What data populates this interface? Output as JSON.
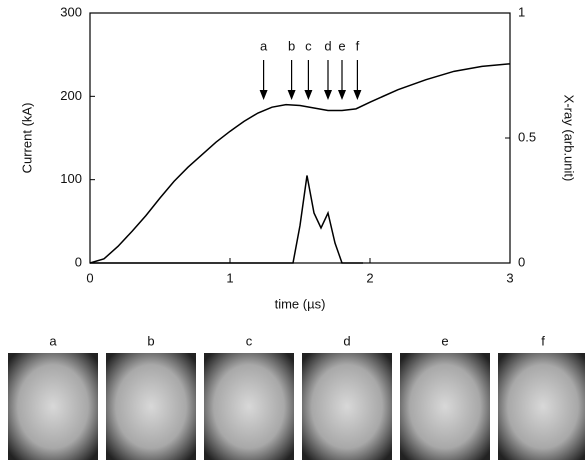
{
  "chart_data": {
    "type": "line",
    "xlabel": "time (µs)",
    "ylabel": "Current (kA)",
    "y2label": "X-ray (arb.unit)",
    "xlim": [
      0,
      3
    ],
    "xticks": [
      0,
      1,
      2,
      3
    ],
    "ylim": [
      0,
      300
    ],
    "yticks": [
      0,
      100,
      200,
      300
    ],
    "y2lim": [
      0,
      1
    ],
    "y2ticks": [
      0,
      0.5,
      1
    ],
    "series": [
      {
        "color": "#000000",
        "x": [
          0,
          0.1,
          0.2,
          0.3,
          0.4,
          0.5,
          0.6,
          0.7,
          0.8,
          0.9,
          1.0,
          1.1,
          1.2,
          1.3,
          1.4,
          1.5,
          1.6,
          1.7,
          1.8,
          1.9,
          2.0,
          2.2,
          2.4,
          2.6,
          2.8,
          3.0
        ],
        "values": [
          0,
          5,
          20,
          38,
          57,
          78,
          98,
          115,
          130,
          145,
          158,
          170,
          180,
          187,
          190,
          189,
          186,
          183,
          183,
          185,
          193,
          208,
          220,
          230,
          236,
          239
        ]
      },
      {
        "color": "#000000",
        "axis": "y2",
        "x": [
          0,
          1.45,
          1.5,
          1.55,
          1.6,
          1.65,
          1.7,
          1.75,
          1.8,
          1.95
        ],
        "values": [
          0,
          0,
          0.15,
          0.35,
          0.2,
          0.14,
          0.2,
          0.08,
          0,
          0
        ]
      }
    ],
    "arrows": [
      {
        "label": "a",
        "x": 1.24
      },
      {
        "label": "b",
        "x": 1.44
      },
      {
        "label": "c",
        "x": 1.56
      },
      {
        "label": "d",
        "x": 1.7
      },
      {
        "label": "e",
        "x": 1.8
      },
      {
        "label": "f",
        "x": 1.91
      }
    ]
  },
  "panels": [
    "a",
    "b",
    "c",
    "d",
    "e",
    "f"
  ]
}
